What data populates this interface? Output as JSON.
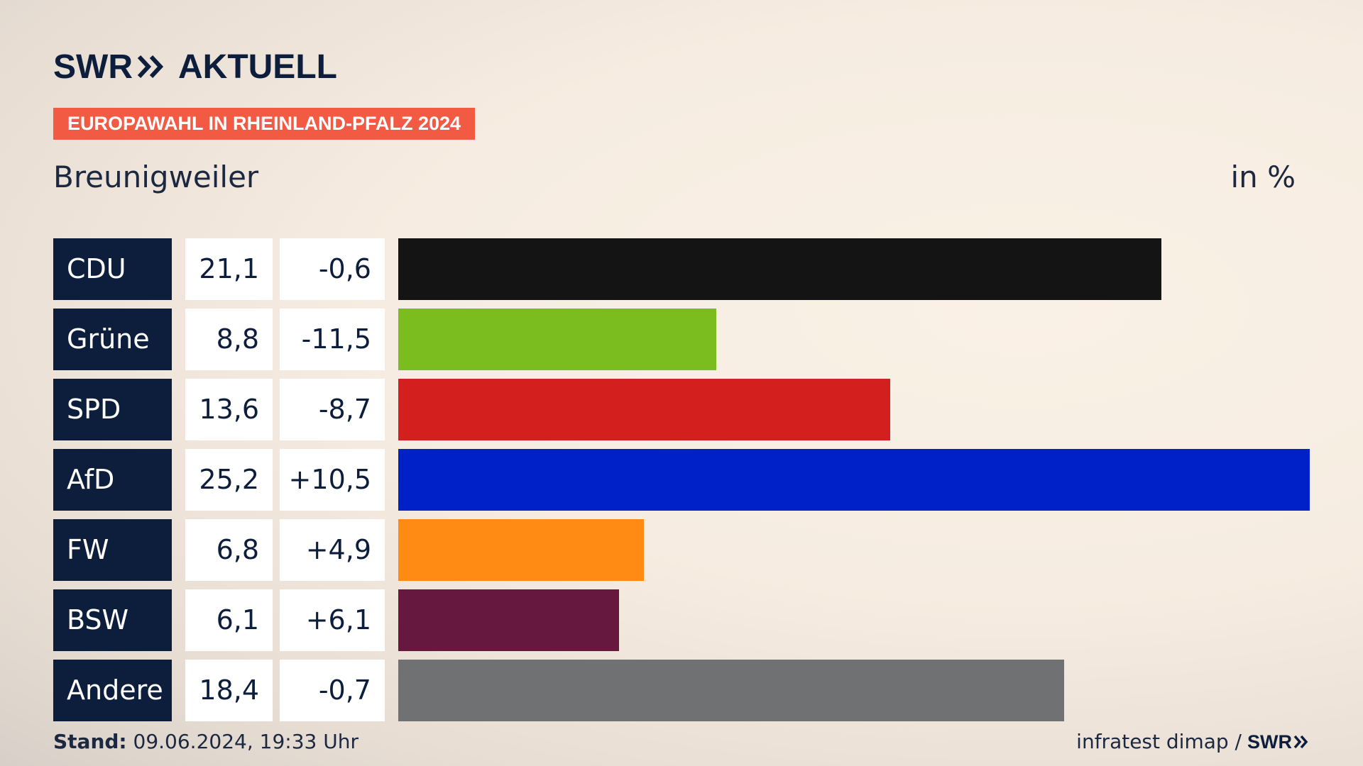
{
  "brand": {
    "logo_left": "SWR",
    "logo_right": "AKTUELL"
  },
  "tag": "EUROPAWAHL IN RHEINLAND-PFALZ 2024",
  "subtitle": "Breunigweiler",
  "unit": "in %",
  "chart_data": {
    "type": "bar",
    "orientation": "horizontal",
    "title": "EUROPAWAHL IN RHEINLAND-PFALZ 2024",
    "subtitle": "Breunigweiler",
    "ylabel": "in %",
    "categories": [
      "CDU",
      "Grüne",
      "SPD",
      "AfD",
      "FW",
      "BSW",
      "Andere"
    ],
    "values": [
      21.1,
      8.8,
      13.6,
      25.2,
      6.8,
      6.1,
      18.4
    ],
    "value_labels": [
      "21,1",
      "8,8",
      "13,6",
      "25,2",
      "6,8",
      "6,1",
      "18,4"
    ],
    "diff_labels": [
      "-0,6",
      "-11,5",
      "-8,7",
      "+10,5",
      "+4,9",
      "+6,1",
      "-0,7"
    ],
    "colors": [
      "#141414",
      "#7bbd1e",
      "#d41f1f",
      "#0020c8",
      "#ff8a14",
      "#66183e",
      "#707173"
    ],
    "xlim": [
      0,
      25.2
    ],
    "grid": false
  },
  "footer": {
    "stand_label": "Stand:",
    "stand_value": " 09.06.2024, 19:33 Uhr",
    "source": "infratest dimap /",
    "source_brand": "SWR"
  }
}
